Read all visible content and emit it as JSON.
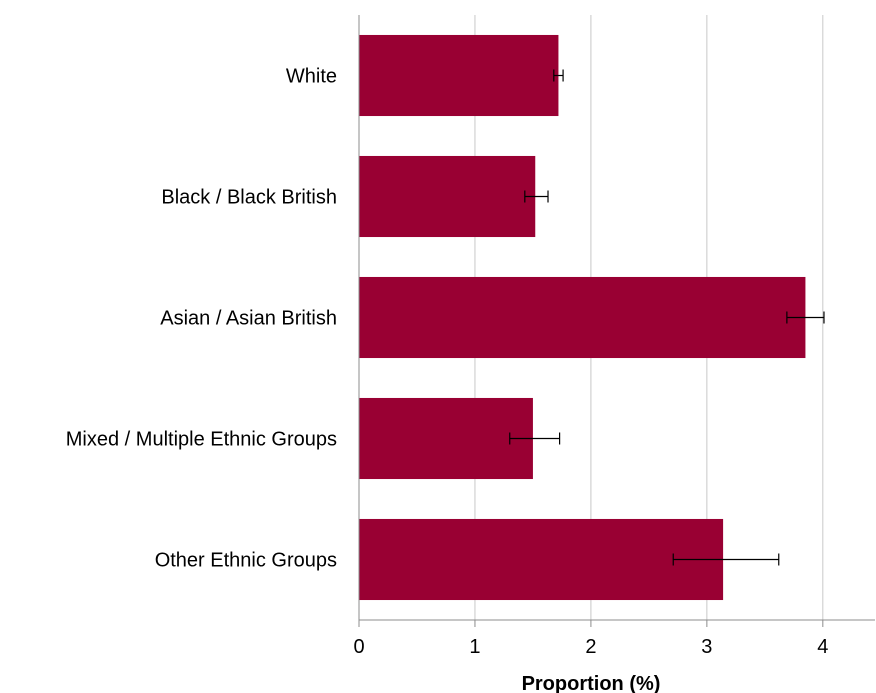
{
  "chart_data": {
    "type": "bar",
    "orientation": "horizontal",
    "title": "",
    "xlabel": "Proportion (%)",
    "ylabel": "",
    "xlim": [
      0,
      4.45
    ],
    "xticks": [
      0,
      1,
      2,
      3,
      4
    ],
    "grid": "vertical",
    "bar_color": "#990033",
    "categories": [
      "White",
      "Black / Black British",
      "Asian / Asian British",
      "Mixed / Multiple Ethnic Groups",
      "Other Ethnic Groups"
    ],
    "values": [
      1.72,
      1.52,
      3.85,
      1.5,
      3.14
    ],
    "error_low": [
      1.68,
      1.43,
      3.69,
      1.3,
      2.71
    ],
    "error_high": [
      1.76,
      1.63,
      4.01,
      1.73,
      3.62
    ]
  }
}
